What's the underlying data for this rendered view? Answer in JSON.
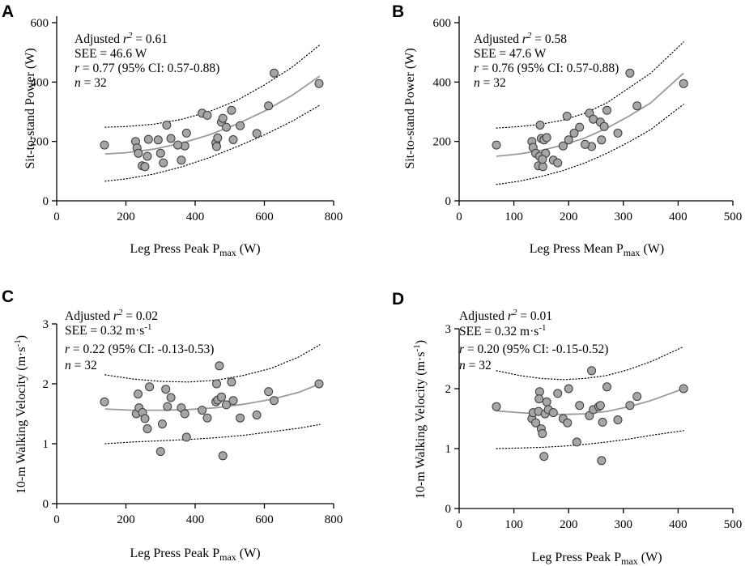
{
  "chart_data": [
    {
      "type": "scatter",
      "panel_label": "A",
      "ylabel": "Sit-to-stand Power (W)",
      "xlabel": {
        "main": "Leg Press Peak P",
        "sub": "max",
        "unit": " (W)"
      },
      "xlim": [
        0,
        800
      ],
      "ylim": [
        0,
        600
      ],
      "xticks": [
        0,
        200,
        400,
        600,
        800
      ],
      "yticks": [
        0,
        200,
        400,
        600
      ],
      "stats": {
        "r2_prefix": "Adjusted ",
        "r2_symbol": "r",
        "r2_sup": "2",
        "r2_value": " = 0.61",
        "see": "SEE = 46.6 W",
        "r_symbol": "r",
        "r_value": " = 0.77 (95% CI: 0.57-0.88)",
        "n_symbol": "n",
        "n_value": " = 32"
      },
      "fit": {
        "x": [
          140,
          200,
          280,
          360,
          440,
          520,
          600,
          680,
          760
        ],
        "y": [
          158,
          162,
          174,
          194,
          222,
          258,
          302,
          355,
          420
        ]
      },
      "ci_upper": {
        "x": [
          140,
          200,
          280,
          360,
          440,
          520,
          600,
          680,
          760
        ],
        "y": [
          248,
          250,
          258,
          274,
          300,
          338,
          390,
          450,
          525
        ]
      },
      "ci_lower": {
        "x": [
          140,
          200,
          280,
          360,
          440,
          520,
          600,
          680,
          760
        ],
        "y": [
          66,
          74,
          90,
          114,
          145,
          182,
          222,
          268,
          322
        ]
      },
      "points": {
        "x": [
          138,
          228,
          232,
          236,
          247,
          255,
          262,
          265,
          293,
          300,
          308,
          318,
          330,
          360,
          370,
          375,
          420,
          435,
          460,
          462,
          465,
          476,
          480,
          490,
          505,
          510,
          530,
          578,
          612,
          628,
          758,
          350
        ],
        "y": [
          188,
          200,
          178,
          160,
          118,
          115,
          150,
          207,
          205,
          160,
          128,
          255,
          210,
          137,
          185,
          228,
          295,
          288,
          195,
          183,
          212,
          265,
          278,
          248,
          305,
          206,
          253,
          227,
          320,
          430,
          395,
          188
        ]
      }
    },
    {
      "type": "scatter",
      "panel_label": "B",
      "ylabel": "Sit-to-stand Power (W)",
      "xlabel": {
        "main": "Leg Press Mean P",
        "sub": "max",
        "unit": " (W)"
      },
      "xlim": [
        0,
        500
      ],
      "ylim": [
        0,
        600
      ],
      "xticks": [
        0,
        100,
        200,
        300,
        400,
        500
      ],
      "yticks": [
        0,
        200,
        400,
        600
      ],
      "stats": {
        "r2_prefix": "Adjusted ",
        "r2_symbol": "r",
        "r2_sup": "2",
        "r2_value": " = 0.58",
        "see": "SEE = 47.6 W",
        "r_symbol": "r",
        "r_value": " = 0.76 (95% CI: 0.57-0.88)",
        "n_symbol": "n",
        "n_value": " = 32"
      },
      "fit": {
        "x": [
          68,
          110,
          150,
          190,
          230,
          270,
          310,
          350,
          410
        ],
        "y": [
          150,
          158,
          170,
          188,
          212,
          245,
          285,
          330,
          430
        ]
      },
      "ci_upper": {
        "x": [
          68,
          110,
          150,
          190,
          230,
          270,
          310,
          350,
          410
        ],
        "y": [
          245,
          250,
          258,
          272,
          295,
          330,
          380,
          430,
          535
        ]
      },
      "ci_lower": {
        "x": [
          68,
          110,
          150,
          190,
          230,
          270,
          310,
          350,
          410
        ],
        "y": [
          55,
          66,
          82,
          102,
          128,
          160,
          198,
          240,
          325
        ]
      },
      "points": {
        "x": [
          68,
          133,
          135,
          140,
          145,
          147,
          148,
          150,
          153,
          155,
          158,
          160,
          172,
          180,
          190,
          197,
          200,
          210,
          220,
          238,
          242,
          245,
          258,
          260,
          265,
          270,
          290,
          312,
          325,
          410,
          152,
          230
        ],
        "y": [
          188,
          200,
          180,
          160,
          118,
          150,
          255,
          210,
          115,
          205,
          160,
          213,
          137,
          128,
          185,
          285,
          205,
          228,
          248,
          295,
          183,
          275,
          265,
          205,
          250,
          305,
          228,
          430,
          320,
          395,
          140,
          190
        ]
      }
    },
    {
      "type": "scatter",
      "panel_label": "C",
      "ylabel": "10-m Walking Velocity (m·s",
      "ylabel_sup": "-1",
      "ylabel_end": ")",
      "xlabel": {
        "main": "Leg Press Peak P",
        "sub": "max",
        "unit": " (W)"
      },
      "xlim": [
        0,
        800
      ],
      "ylim": [
        0,
        3
      ],
      "xticks": [
        0,
        200,
        400,
        600,
        800
      ],
      "yticks": [
        0,
        1,
        2,
        3
      ],
      "stats": {
        "r2_prefix": "Adjusted ",
        "r2_symbol": "r",
        "r2_sup": "2",
        "r2_value": " = 0.02",
        "see": "SEE = 0.32 m·s",
        "see_sup": "-1",
        "r_symbol": "r",
        "r_value": " = 0.22 (95% CI: -0.13-0.53)",
        "n_symbol": "n",
        "n_value": " = 32"
      },
      "fit": {
        "x": [
          140,
          220,
          300,
          380,
          460,
          540,
          620,
          700,
          760
        ],
        "y": [
          1.58,
          1.56,
          1.56,
          1.57,
          1.6,
          1.66,
          1.74,
          1.86,
          2.0
        ]
      },
      "ci_upper": {
        "x": [
          140,
          220,
          300,
          380,
          460,
          540,
          620,
          700,
          760
        ],
        "y": [
          2.15,
          2.08,
          2.04,
          2.03,
          2.06,
          2.14,
          2.26,
          2.45,
          2.65
        ]
      },
      "ci_lower": {
        "x": [
          140,
          220,
          300,
          380,
          460,
          540,
          620,
          700,
          760
        ],
        "y": [
          1.0,
          1.03,
          1.05,
          1.07,
          1.1,
          1.14,
          1.2,
          1.26,
          1.32
        ]
      },
      "points": {
        "x": [
          138,
          230,
          235,
          238,
          248,
          255,
          262,
          268,
          300,
          305,
          315,
          320,
          330,
          360,
          370,
          375,
          420,
          435,
          460,
          462,
          465,
          470,
          476,
          480,
          490,
          505,
          510,
          530,
          578,
          612,
          628,
          758
        ],
        "y": [
          1.7,
          1.5,
          1.83,
          1.6,
          1.52,
          1.42,
          1.25,
          1.95,
          0.87,
          1.33,
          1.91,
          1.62,
          1.77,
          1.6,
          1.5,
          1.11,
          1.56,
          1.43,
          1.7,
          2.0,
          1.73,
          2.3,
          1.78,
          0.8,
          1.65,
          2.03,
          1.72,
          1.43,
          1.48,
          1.87,
          1.72,
          2.0
        ]
      }
    },
    {
      "type": "scatter",
      "panel_label": "D",
      "ylabel": "10-m Walking Velocity (m·s",
      "ylabel_sup": "-1",
      "ylabel_end": ")",
      "xlabel": {
        "main": "Leg Press Peak P",
        "sub": "max",
        "unit": " (W)"
      },
      "xlim": [
        0,
        500
      ],
      "ylim": [
        0,
        3
      ],
      "xticks": [
        0,
        100,
        200,
        300,
        400,
        500
      ],
      "yticks": [
        0,
        1,
        2,
        3
      ],
      "stats": {
        "r2_prefix": "Adjusted ",
        "r2_symbol": "r",
        "r2_sup": "2",
        "r2_value": " = 0.01",
        "see": "SEE = 0.32 m·s",
        "see_sup": "-1",
        "r_symbol": "r",
        "r_value": " = 0.20 (95% CI: -0.15-0.52)",
        "n_symbol": "n",
        "n_value": " = 32"
      },
      "fit": {
        "x": [
          68,
          110,
          150,
          190,
          230,
          270,
          310,
          350,
          410
        ],
        "y": [
          1.63,
          1.6,
          1.58,
          1.57,
          1.58,
          1.62,
          1.7,
          1.8,
          2.0
        ]
      },
      "ci_upper": {
        "x": [
          68,
          110,
          150,
          190,
          230,
          270,
          310,
          350,
          410
        ],
        "y": [
          2.3,
          2.22,
          2.17,
          2.15,
          2.17,
          2.22,
          2.32,
          2.45,
          2.7
        ]
      },
      "ci_lower": {
        "x": [
          68,
          110,
          150,
          190,
          230,
          270,
          310,
          350,
          410
        ],
        "y": [
          1.0,
          1.01,
          1.02,
          1.04,
          1.07,
          1.11,
          1.16,
          1.22,
          1.3
        ]
      },
      "points": {
        "x": [
          68,
          133,
          135,
          140,
          145,
          147,
          150,
          152,
          155,
          157,
          160,
          163,
          172,
          180,
          190,
          198,
          200,
          215,
          220,
          238,
          242,
          245,
          255,
          258,
          260,
          262,
          270,
          290,
          312,
          325,
          410,
          146
        ],
        "y": [
          1.7,
          1.5,
          1.6,
          1.43,
          1.62,
          1.95,
          1.33,
          1.25,
          0.87,
          1.58,
          1.78,
          1.65,
          1.6,
          1.92,
          1.5,
          1.43,
          2.0,
          1.11,
          1.72,
          1.55,
          2.3,
          1.65,
          1.7,
          1.72,
          0.8,
          1.44,
          2.03,
          1.48,
          1.72,
          1.87,
          2.0,
          1.83
        ]
      }
    }
  ]
}
